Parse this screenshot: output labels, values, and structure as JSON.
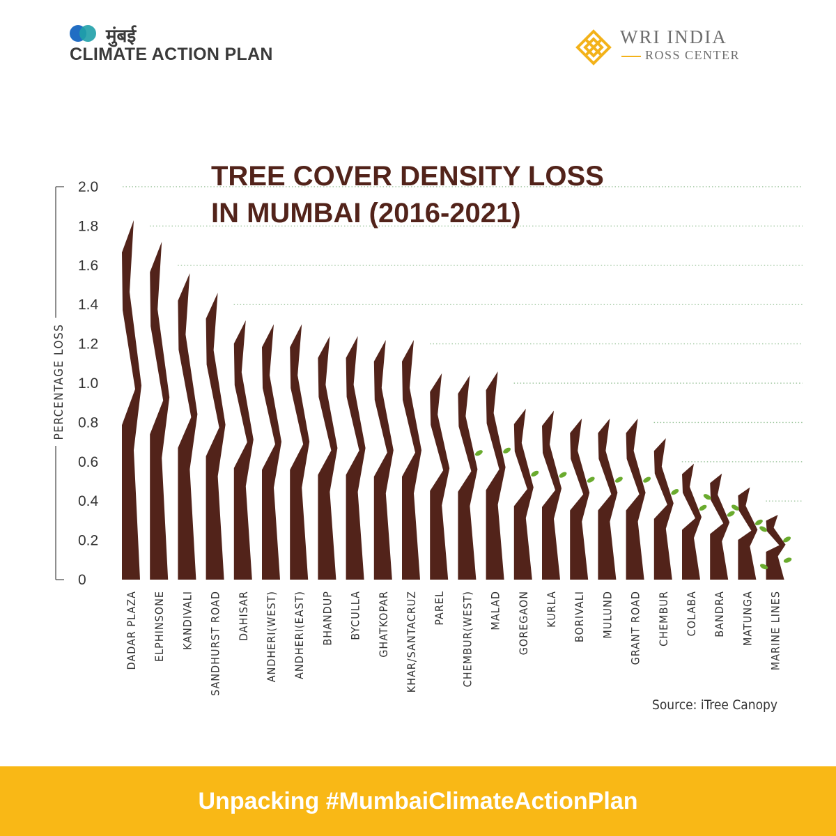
{
  "branding": {
    "left_logo_devanagari": "मुंबई",
    "left_logo_text": "CLIMATE ACTION PLAN",
    "right_logo_title": "WRI INDIA",
    "right_logo_subtitle": "ROSS CENTER"
  },
  "colors": {
    "trunk": "#52231a",
    "leaf": "#6aab2e",
    "gridline": "#9bc49b",
    "axis_text": "#333333",
    "footer_bg": "#f9b816",
    "footer_text": "#ffffff",
    "logo_blue": "#1565c0",
    "logo_teal": "#1fa0a8",
    "logo_gold": "#f3b21a",
    "logo_gray": "#6e6e6e",
    "logo_dark": "#3a3a3a"
  },
  "chart_data": {
    "type": "bar",
    "title": [
      "TREE COVER DENSITY LOSS",
      "IN MUMBAI (2016-2021)"
    ],
    "ylabel": "PERCENTAGE LOSS",
    "xlabel": "",
    "ylim": [
      0,
      2.0
    ],
    "yticks": [
      "0",
      "0.2",
      "0.4",
      "0.6",
      "0.8",
      "1.0",
      "1.2",
      "1.4",
      "1.6",
      "1.8",
      "2.0"
    ],
    "grid": true,
    "categories": [
      "DADAR PLAZA",
      "ELPHINSONE",
      "KANDIVALI",
      "SANDHURST ROAD",
      "DAHISAR",
      "ANDHERI(WEST)",
      "ANDHERI(EAST)",
      "BHANDUP",
      "BYCULLA",
      "GHATKOPAR",
      "KHAR/SANTACRUZ",
      "PAREL",
      "CHEMBUR(WEST)",
      "MALAD",
      "GOREGAON",
      "KURLA",
      "BORIVALI",
      "MULUND",
      "GRANT ROAD",
      "CHEMBUR",
      "COLABA",
      "BANDRA",
      "MATUNGA",
      "MARINE LINES"
    ],
    "values": [
      1.83,
      1.72,
      1.56,
      1.46,
      1.32,
      1.3,
      1.3,
      1.24,
      1.24,
      1.22,
      1.22,
      1.05,
      1.04,
      1.06,
      0.87,
      0.86,
      0.82,
      0.82,
      0.82,
      0.72,
      0.59,
      0.54,
      0.47,
      0.33
    ],
    "leaves": [
      0,
      0,
      0,
      0,
      0,
      0,
      0,
      0,
      0,
      0,
      0,
      0,
      1,
      1,
      1,
      1,
      1,
      1,
      1,
      1,
      1,
      2,
      2,
      4
    ],
    "source": "Source: iTree Canopy"
  },
  "footer": {
    "text": "Unpacking #MumbaiClimateActionPlan"
  }
}
